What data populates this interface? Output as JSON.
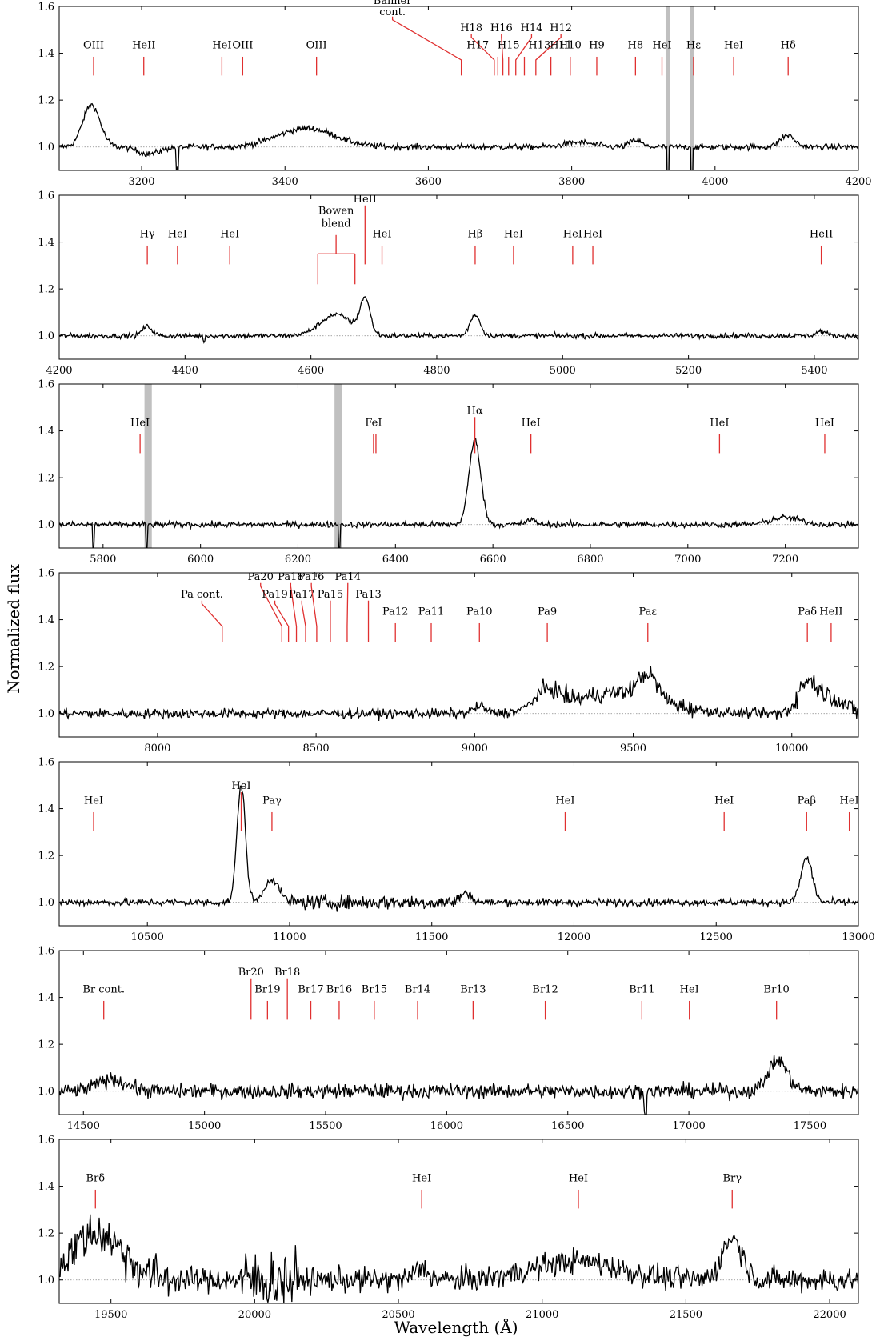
{
  "chart_data": {
    "type": "line",
    "ylabel": "Normalized flux",
    "xlabel": "Wavelength (Å)",
    "yticks": [
      1.0,
      1.2,
      1.4,
      1.6
    ],
    "ylim": [
      0.9,
      1.6
    ],
    "colors": {
      "spectrum": "#000000",
      "line_marker": "#e03030",
      "band": "#c0c0c0",
      "reference": "#888888"
    },
    "panels": [
      {
        "xlim": [
          3085,
          4200
        ],
        "xticks": [
          3200,
          3400,
          3600,
          3800,
          4000,
          4200
        ],
        "bands": [
          [
            3931,
            3937
          ],
          [
            3965,
            3971
          ]
        ],
        "features": [
          [
            3130,
            0.18,
            12
          ],
          [
            3210,
            -0.03,
            15
          ],
          [
            3430,
            0.08,
            40
          ],
          [
            3810,
            0.02,
            20
          ],
          [
            3889,
            0.03,
            8
          ],
          [
            4101,
            0.05,
            10
          ]
        ],
        "dips": [
          [
            3934,
            -0.2
          ],
          [
            3968,
            -0.2
          ],
          [
            3250,
            -0.1
          ]
        ],
        "noise": 0.012,
        "lines": [
          {
            "label": "OIII",
            "x": 3133
          },
          {
            "label": "HeII",
            "x": 3203
          },
          {
            "label": "HeI",
            "x": 3312
          },
          {
            "label": "OIII",
            "x": 3341
          },
          {
            "label": "OIII",
            "x": 3444
          },
          {
            "label": "Balmer cont.",
            "x": 3646,
            "lx": 3550,
            "tier": 3
          },
          {
            "label": "H18",
            "x": 3692,
            "lx": 3660,
            "tier": 2
          },
          {
            "label": "H17",
            "x": 3697,
            "lx": 3669,
            "tier": 1
          },
          {
            "label": "H16",
            "x": 3704,
            "lx": 3702,
            "tier": 2
          },
          {
            "label": "H15",
            "x": 3712,
            "lx": 3712,
            "tier": 1
          },
          {
            "label": "H14",
            "x": 3722,
            "lx": 3744,
            "tier": 2
          },
          {
            "label": "H13",
            "x": 3734,
            "lx": 3755,
            "tier": 1
          },
          {
            "label": "H12",
            "x": 3750,
            "lx": 3785,
            "tier": 2
          },
          {
            "label": "H11",
            "x": 3771,
            "lx": 3785,
            "tier": 1
          },
          {
            "label": "H10",
            "x": 3798
          },
          {
            "label": "H9",
            "x": 3835
          },
          {
            "label": "H8",
            "x": 3889
          },
          {
            "label": "HeI",
            "x": 3926
          },
          {
            "label": "Hε",
            "x": 3970
          },
          {
            "label": "HeI",
            "x": 4026
          },
          {
            "label": "Hδ",
            "x": 4102
          }
        ]
      },
      {
        "xlim": [
          4200,
          5470
        ],
        "xticks": [
          4200,
          4400,
          4600,
          4800,
          5000,
          5200,
          5400
        ],
        "bands": [],
        "features": [
          [
            4340,
            0.04,
            8
          ],
          [
            4640,
            0.09,
            25
          ],
          [
            4686,
            0.15,
            8
          ],
          [
            4861,
            0.09,
            8
          ],
          [
            5411,
            0.02,
            8
          ]
        ],
        "dips": [
          [
            4430,
            -0.02
          ]
        ],
        "noise": 0.01,
        "lines": [
          {
            "label": "Hγ",
            "x": 4340
          },
          {
            "label": "HeI",
            "x": 4388
          },
          {
            "label": "HeI",
            "x": 4471
          },
          {
            "label": "Bowen blend",
            "x": 4640,
            "bracket": [
              4611,
              4670
            ],
            "tier": 2
          },
          {
            "label": "HeII",
            "x": 4686,
            "tier": 3
          },
          {
            "label": "HeI",
            "x": 4713
          },
          {
            "label": "Hβ",
            "x": 4861
          },
          {
            "label": "HeI",
            "x": 4922
          },
          {
            "label": "HeI",
            "x": 5016
          },
          {
            "label": "HeI",
            "x": 5048
          },
          {
            "label": "HeII",
            "x": 5411
          }
        ]
      },
      {
        "xlim": [
          5710,
          7350
        ],
        "xticks": [
          5800,
          6000,
          6200,
          6400,
          6600,
          6800,
          7000,
          7200
        ],
        "bands": [
          [
            5885,
            5900
          ],
          [
            6275,
            6290
          ]
        ],
        "features": [
          [
            6563,
            0.36,
            12
          ],
          [
            6678,
            0.02,
            10
          ],
          [
            7200,
            0.03,
            30
          ]
        ],
        "dips": [
          [
            5780,
            -0.1
          ],
          [
            5890,
            -0.1
          ],
          [
            6285,
            -0.1
          ]
        ],
        "noise": 0.012,
        "lines": [
          {
            "label": "HeI",
            "x": 5876
          },
          {
            "label": "FeI",
            "x": 6355,
            "double": 6360
          },
          {
            "label": "Hα",
            "x": 6563,
            "tier": 1.7
          },
          {
            "label": "HeI",
            "x": 6678
          },
          {
            "label": "HeI",
            "x": 7065
          },
          {
            "label": "HeI",
            "x": 7281
          }
        ]
      },
      {
        "xlim": [
          7690,
          10210
        ],
        "xticks": [
          8000,
          8500,
          9000,
          9500,
          10000
        ],
        "bands": [],
        "features": [
          [
            9229,
            0.08,
            40
          ],
          [
            9450,
            0.09,
            140
          ],
          [
            9546,
            0.1,
            30
          ],
          [
            9015,
            0.03,
            20
          ],
          [
            10049,
            0.13,
            30
          ],
          [
            10124,
            0.07,
            40
          ]
        ],
        "dips": [],
        "noise": 0.02,
        "noisy": [
          [
            9200,
            9700,
            0.035
          ],
          [
            9950,
            10210,
            0.04
          ]
        ],
        "lines": [
          {
            "label": "Pa cont.",
            "x": 8204,
            "lx": 8140,
            "tier": 2
          },
          {
            "label": "Pa20",
            "x": 8392,
            "lx": 8325,
            "tier": 3
          },
          {
            "label": "Pa19",
            "x": 8413,
            "lx": 8370,
            "tier": 2
          },
          {
            "label": "Pa18",
            "x": 8438,
            "lx": 8420,
            "tier": 3
          },
          {
            "label": "Pa17",
            "x": 8467,
            "lx": 8455,
            "tier": 2
          },
          {
            "label": "Pa16",
            "x": 8502,
            "lx": 8485,
            "tier": 3
          },
          {
            "label": "Pa15",
            "x": 8545,
            "lx": 8545,
            "tier": 2
          },
          {
            "label": "Pa14",
            "x": 8598,
            "lx": 8600,
            "tier": 3
          },
          {
            "label": "Pa13",
            "x": 8665,
            "lx": 8665,
            "tier": 2
          },
          {
            "label": "Pa12",
            "x": 8750
          },
          {
            "label": "Pa11",
            "x": 8863
          },
          {
            "label": "Pa10",
            "x": 9015
          },
          {
            "label": "Pa9",
            "x": 9229
          },
          {
            "label": "Paε",
            "x": 9546
          },
          {
            "label": "Paδ",
            "x": 10049
          },
          {
            "label": "HeII",
            "x": 10124
          }
        ]
      },
      {
        "xlim": [
          10190,
          13000
        ],
        "xticks": [
          10500,
          11000,
          11500,
          12000,
          12500,
          13000
        ],
        "bands": [],
        "features": [
          [
            10830,
            0.5,
            15
          ],
          [
            10938,
            0.1,
            25
          ],
          [
            11620,
            0.04,
            20
          ],
          [
            12818,
            0.19,
            20
          ]
        ],
        "dips": [],
        "noise": 0.015,
        "noisy": [
          [
            11000,
            11600,
            0.03
          ]
        ],
        "lines": [
          {
            "label": "HeI",
            "x": 10311
          },
          {
            "label": "HeI",
            "x": 10830,
            "tier": 1.85
          },
          {
            "label": "Paγ",
            "x": 10938
          },
          {
            "label": "HeI",
            "x": 11969
          },
          {
            "label": "HeI",
            "x": 12528
          },
          {
            "label": "Paβ",
            "x": 12818
          },
          {
            "label": "HeI",
            "x": 12968
          }
        ]
      },
      {
        "xlim": [
          14400,
          17700
        ],
        "xticks": [
          14500,
          15000,
          15500,
          16000,
          16500,
          17000,
          17500
        ],
        "bands": [],
        "features": [
          [
            17367,
            0.13,
            40
          ],
          [
            14620,
            0.05,
            60
          ]
        ],
        "dips": [
          [
            16820,
            -0.1
          ]
        ],
        "noise": 0.03,
        "lines": [
          {
            "label": "Br cont.",
            "x": 14584
          },
          {
            "label": "Br20",
            "x": 15192,
            "tier": 2
          },
          {
            "label": "Br19",
            "x": 15260
          },
          {
            "label": "Br18",
            "x": 15342,
            "tier": 2
          },
          {
            "label": "Br17",
            "x": 15439
          },
          {
            "label": "Br16",
            "x": 15556
          },
          {
            "label": "Br15",
            "x": 15701
          },
          {
            "label": "Br14",
            "x": 15880
          },
          {
            "label": "Br13",
            "x": 16109
          },
          {
            "label": "Br12",
            "x": 16407
          },
          {
            "label": "Br11",
            "x": 16806
          },
          {
            "label": "HeI",
            "x": 17002
          },
          {
            "label": "Br10",
            "x": 17362
          }
        ]
      },
      {
        "xlim": [
          19320,
          22100
        ],
        "xticks": [
          19500,
          20000,
          20500,
          21000,
          21500,
          22000
        ],
        "bands": [],
        "features": [
          [
            19450,
            0.2,
            90
          ],
          [
            20581,
            0.05,
            25
          ],
          [
            21120,
            0.08,
            150
          ],
          [
            21661,
            0.18,
            35
          ]
        ],
        "dips": [],
        "noise": 0.05,
        "noisy": [
          [
            19320,
            19700,
            0.09
          ],
          [
            19950,
            20150,
            0.12
          ]
        ],
        "lines": [
          {
            "label": "Brδ",
            "x": 19446
          },
          {
            "label": "HeI",
            "x": 20581
          },
          {
            "label": "HeI",
            "x": 21126
          },
          {
            "label": "Brγ",
            "x": 21661
          }
        ]
      }
    ]
  }
}
